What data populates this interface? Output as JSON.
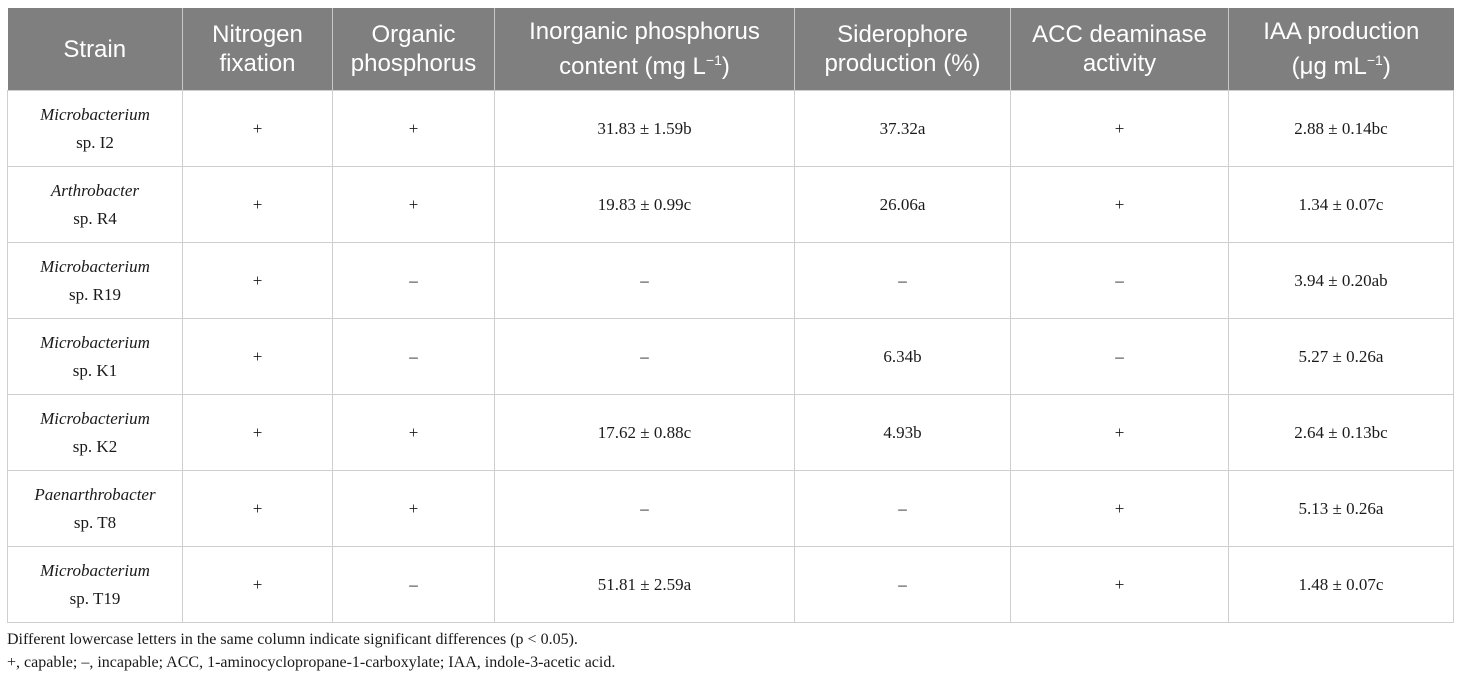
{
  "table": {
    "headers": [
      {
        "line1": "Strain",
        "line2": ""
      },
      {
        "line1": "Nitrogen",
        "line2": "fixation"
      },
      {
        "line1": "Organic",
        "line2": "phosphorus"
      },
      {
        "line1": "Inorganic phosphorus",
        "line2": "content (mg L",
        "sup": "−1",
        "tail": ")"
      },
      {
        "line1": "Siderophore",
        "line2": "production (%)"
      },
      {
        "line1": "ACC deaminase",
        "line2": "activity"
      },
      {
        "line1": "IAA production",
        "line2": "(μg mL",
        "sup": "−1",
        "tail": ")"
      }
    ],
    "rows": [
      {
        "genus": "Microbacterium",
        "strain": "sp. I2",
        "nitrogen": "+",
        "organic_p": "+",
        "inorganic_p": "31.83 ± 1.59b",
        "siderophore": "37.32a",
        "acc": "+",
        "iaa": "2.88 ± 0.14bc"
      },
      {
        "genus": "Arthrobacter",
        "strain": "sp. R4",
        "nitrogen": "+",
        "organic_p": "+",
        "inorganic_p": "19.83 ± 0.99c",
        "siderophore": "26.06a",
        "acc": "+",
        "iaa": "1.34 ± 0.07c"
      },
      {
        "genus": "Microbacterium",
        "strain": "sp. R19",
        "nitrogen": "+",
        "organic_p": "–",
        "inorganic_p": "–",
        "siderophore": "–",
        "acc": "–",
        "iaa": "3.94 ± 0.20ab"
      },
      {
        "genus": "Microbacterium",
        "strain": "sp. K1",
        "nitrogen": "+",
        "organic_p": "–",
        "inorganic_p": "–",
        "siderophore": "6.34b",
        "acc": "–",
        "iaa": "5.27 ± 0.26a"
      },
      {
        "genus": "Microbacterium",
        "strain": "sp. K2",
        "nitrogen": "+",
        "organic_p": "+",
        "inorganic_p": "17.62 ± 0.88c",
        "siderophore": "4.93b",
        "acc": "+",
        "iaa": "2.64 ± 0.13bc"
      },
      {
        "genus": "Paenarthrobacter",
        "strain": "sp. T8",
        "nitrogen": "+",
        "organic_p": "+",
        "inorganic_p": "–",
        "siderophore": "–",
        "acc": "+",
        "iaa": "5.13 ± 0.26a"
      },
      {
        "genus": "Microbacterium",
        "strain": "sp. T19",
        "nitrogen": "+",
        "organic_p": "–",
        "inorganic_p": "51.81 ± 2.59a",
        "siderophore": "–",
        "acc": "+",
        "iaa": "1.48 ± 0.07c"
      }
    ]
  },
  "notes": [
    "Different lowercase letters in the same column indicate significant differences (p < 0.05).",
    "+, capable; –, incapable; ACC, 1-aminocyclopropane-1-carboxylate; IAA, indole-3-acetic acid."
  ]
}
